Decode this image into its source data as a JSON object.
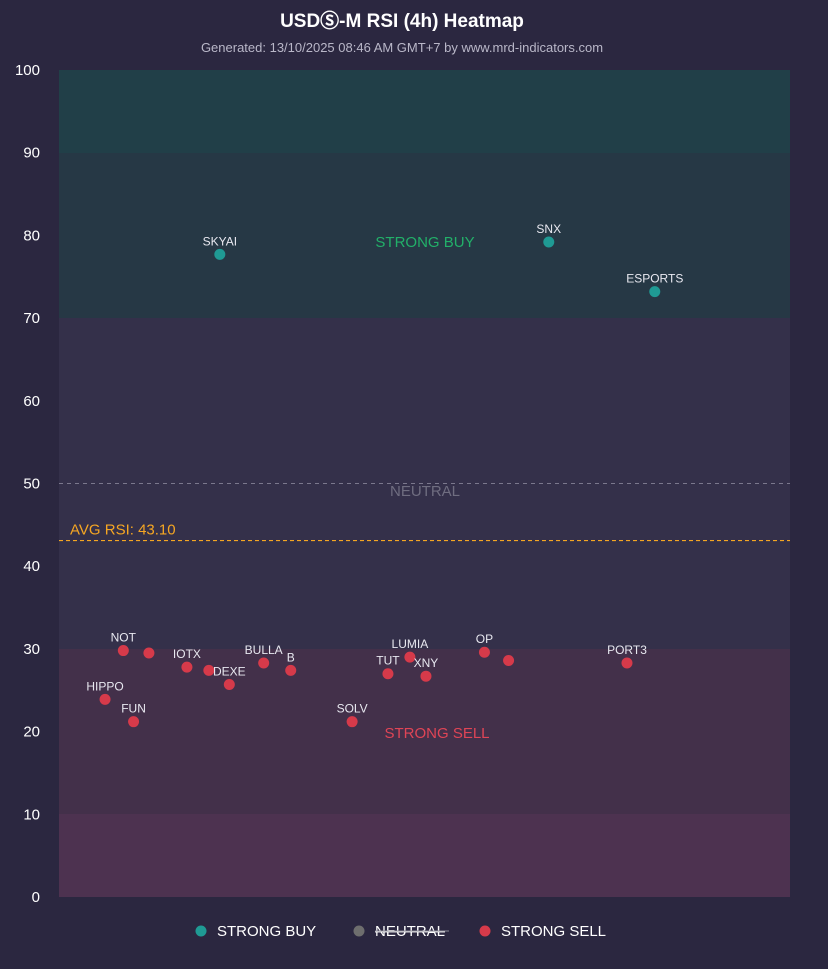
{
  "chart_data": {
    "type": "scatter",
    "title": "USDⓈ-M RSI (4h) Heatmap",
    "subtitle": "Generated: 13/10/2025 08:46 AM GMT+7 by www.mrd-indicators.com",
    "ylim": [
      0,
      100
    ],
    "yticks": [
      0,
      10,
      20,
      30,
      40,
      50,
      60,
      70,
      80,
      90,
      100
    ],
    "grid": false,
    "avg_rsi": 43.1,
    "avg_label": "AVG RSI: 43.10",
    "zone_labels": {
      "strong_buy": "STRONG BUY",
      "neutral": "NEUTRAL",
      "strong_sell": "STRONG SELL"
    },
    "colors": {
      "strong_buy": "#1f9a94",
      "neutral": "#6e6e6e",
      "strong_sell": "#d63a4a",
      "avg": "#f5a623"
    },
    "legend": [
      {
        "name": "STRONG BUY",
        "color": "#1f9a94",
        "struck": false
      },
      {
        "name": "NEUTRAL",
        "color": "#6e6e6e",
        "struck": true
      },
      {
        "name": "STRONG SELL",
        "color": "#d63a4a",
        "struck": false
      }
    ],
    "legend_position": "bottom-center",
    "points": [
      {
        "label": "SKYAI",
        "x": 0.22,
        "y": 77.7,
        "zone": "strong_buy"
      },
      {
        "label": "SNX",
        "x": 0.67,
        "y": 79.2,
        "zone": "strong_buy"
      },
      {
        "label": "ESPORTS",
        "x": 0.815,
        "y": 73.2,
        "zone": "strong_buy"
      },
      {
        "label": "NOT",
        "x": 0.088,
        "y": 29.8,
        "zone": "strong_sell"
      },
      {
        "label": "",
        "x": 0.123,
        "y": 29.5,
        "zone": "strong_sell"
      },
      {
        "label": "HIPPO",
        "x": 0.063,
        "y": 23.9,
        "zone": "strong_sell"
      },
      {
        "label": "FUN",
        "x": 0.102,
        "y": 21.2,
        "zone": "strong_sell"
      },
      {
        "label": "IOTX",
        "x": 0.175,
        "y": 27.8,
        "zone": "strong_sell"
      },
      {
        "label": "",
        "x": 0.205,
        "y": 27.4,
        "zone": "strong_sell"
      },
      {
        "label": "DEXE",
        "x": 0.233,
        "y": 25.7,
        "zone": "strong_sell"
      },
      {
        "label": "BULLA",
        "x": 0.28,
        "y": 28.3,
        "zone": "strong_sell"
      },
      {
        "label": "B",
        "x": 0.317,
        "y": 27.4,
        "zone": "strong_sell"
      },
      {
        "label": "SOLV",
        "x": 0.401,
        "y": 21.2,
        "zone": "strong_sell"
      },
      {
        "label": "TUT",
        "x": 0.45,
        "y": 27.0,
        "zone": "strong_sell"
      },
      {
        "label": "LUMIA",
        "x": 0.48,
        "y": 29.0,
        "zone": "strong_sell"
      },
      {
        "label": "XNY",
        "x": 0.502,
        "y": 26.7,
        "zone": "strong_sell"
      },
      {
        "label": "OP",
        "x": 0.582,
        "y": 29.6,
        "zone": "strong_sell"
      },
      {
        "label": "",
        "x": 0.615,
        "y": 28.6,
        "zone": "strong_sell"
      },
      {
        "label": "PORT3",
        "x": 0.777,
        "y": 28.3,
        "zone": "strong_sell"
      }
    ]
  }
}
